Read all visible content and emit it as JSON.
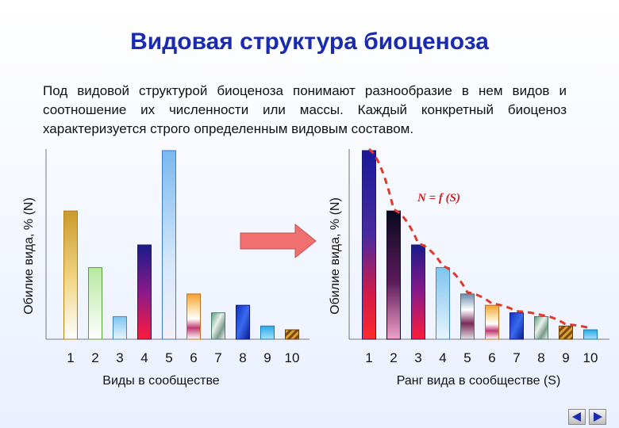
{
  "page": {
    "title": "Видовая структура биоценоза",
    "description": "Под видовой структурой биоценоза понимают разнообразие в нем видов и соотношение их численности или массы. Каждый конкретный биоценоз характеризуется строго определенным видовым составом."
  },
  "arrow_color": "#f07070",
  "curve_color": "#e03a2a",
  "chart_data": [
    {
      "type": "bar",
      "categories": [
        "1",
        "2",
        "3",
        "4",
        "5",
        "6",
        "7",
        "8",
        "9",
        "10"
      ],
      "values": [
        68,
        38,
        12,
        50,
        100,
        24,
        14,
        18,
        7,
        5
      ],
      "ylim": [
        0,
        100
      ],
      "xlabel": "Виды в сообществе",
      "ylabel": "Обилие вида, % (N)",
      "bar_styles": [
        "gold",
        "green",
        "skyblue",
        "purple",
        "sky",
        "orange",
        "grayteal",
        "blue",
        "cyan",
        "orange-stripe"
      ]
    },
    {
      "type": "bar",
      "categories": [
        "1",
        "2",
        "3",
        "4",
        "5",
        "6",
        "7",
        "8",
        "9",
        "10"
      ],
      "values": [
        100,
        68,
        50,
        38,
        24,
        18,
        14,
        12,
        7,
        5
      ],
      "ylim": [
        0,
        100
      ],
      "xlabel": "Ранг вида в сообществе (S)",
      "ylabel": "Обилие вида, % (N)",
      "annotation": "N = f (S)",
      "bar_styles": [
        "blue-red",
        "black-pink",
        "purple",
        "skyblue",
        "gray",
        "orange",
        "blue",
        "grayteal",
        "orange-stripe",
        "cyan"
      ]
    }
  ],
  "nav": {
    "prev": "◀",
    "next": "▶"
  }
}
